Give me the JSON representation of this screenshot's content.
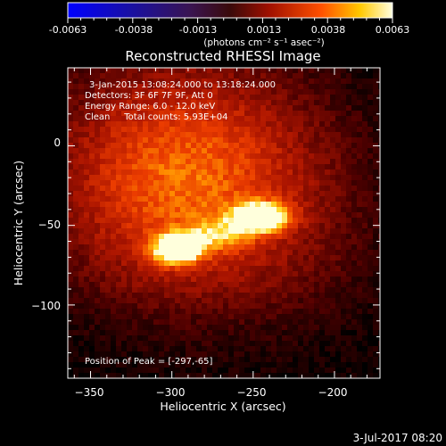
{
  "colorbar": {
    "tick_labels": [
      "-0.0063",
      "-0.0038",
      "-0.0013",
      "0.0013",
      "0.0038",
      "0.0063"
    ],
    "unit_label": "(photons cm⁻² s⁻¹ asec⁻²)"
  },
  "footer": {
    "date_stamp": "3-Jul-2017 08:20"
  },
  "chart_data": {
    "type": "heatmap",
    "title": "Reconstructed RHESSI Image",
    "xlabel": "Heliocentric X (arcsec)",
    "ylabel": "Heliocentric Y (arcsec)",
    "xlim": [
      -364,
      -172
    ],
    "ylim": [
      -146,
      49
    ],
    "x_ticks": [
      -350,
      -300,
      -250,
      -200
    ],
    "y_ticks": [
      0,
      -50,
      -100
    ],
    "x_tick_labels": [
      "−350",
      "−300",
      "−250",
      "−200"
    ],
    "y_tick_labels": [
      "0",
      "−50",
      "−100"
    ],
    "color_range": [
      -0.0063,
      0.0063
    ],
    "colormap": "red-temperature",
    "annotations": [
      "3-Jan-2015 13:08:24.000 to 13:18:24.000",
      "Detectors: 3F 6F 7F 9F, Att 0",
      "Energy Range: 6.0 - 12.0 keV",
      "Clean     Total counts: 5.93E+04"
    ],
    "peak_label": "Position of Peak = [-297,-65]",
    "sources": [
      {
        "x": -297,
        "y": -65,
        "peak": 0.0063
      },
      {
        "x": -245,
        "y": -45,
        "peak": 0.0058
      }
    ],
    "background_level": 0.0018
  }
}
